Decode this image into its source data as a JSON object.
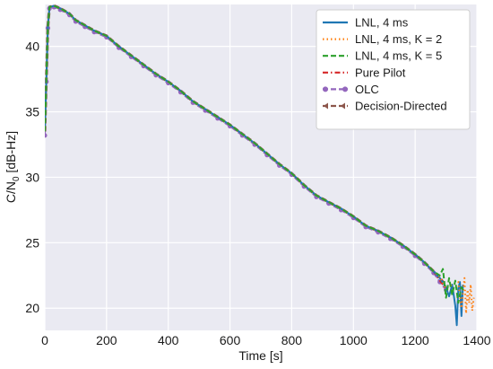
{
  "chart_data": {
    "type": "line",
    "xlabel": "Time [s]",
    "ylabel": "C/N",
    "ylabel_subscript": "0",
    "ylabel_suffix": " [dB-Hz]",
    "xlim": [
      0,
      1400
    ],
    "ylim": [
      18.3,
      43.2
    ],
    "xticks": [
      0,
      200,
      400,
      600,
      800,
      1000,
      1200,
      1400
    ],
    "yticks": [
      20,
      25,
      30,
      35,
      40
    ],
    "grid": true,
    "background": "#eaeaf2",
    "legend_position": "top-right",
    "series": [
      {
        "name": "LNL, 4 ms",
        "color": "#1f77b4",
        "dash": "solid",
        "marker": "none",
        "points": [
          [
            0,
            33.5
          ],
          [
            5,
            37.5
          ],
          [
            10,
            41.5
          ],
          [
            15,
            43.0
          ],
          [
            30,
            43.1
          ],
          [
            50,
            42.9
          ],
          [
            80,
            42.5
          ],
          [
            100,
            42.0
          ],
          [
            130,
            41.6
          ],
          [
            160,
            41.2
          ],
          [
            200,
            40.8
          ],
          [
            240,
            40.0
          ],
          [
            280,
            39.3
          ],
          [
            320,
            38.6
          ],
          [
            360,
            37.9
          ],
          [
            400,
            37.3
          ],
          [
            440,
            36.6
          ],
          [
            480,
            35.8
          ],
          [
            520,
            35.2
          ],
          [
            560,
            34.6
          ],
          [
            600,
            34.0
          ],
          [
            640,
            33.3
          ],
          [
            680,
            32.6
          ],
          [
            720,
            31.8
          ],
          [
            760,
            31.0
          ],
          [
            800,
            30.3
          ],
          [
            840,
            29.4
          ],
          [
            880,
            28.6
          ],
          [
            920,
            28.1
          ],
          [
            960,
            27.6
          ],
          [
            1000,
            27.0
          ],
          [
            1040,
            26.3
          ],
          [
            1080,
            25.9
          ],
          [
            1120,
            25.4
          ],
          [
            1160,
            24.8
          ],
          [
            1200,
            24.1
          ],
          [
            1230,
            23.5
          ],
          [
            1260,
            22.8
          ],
          [
            1280,
            22.3
          ],
          [
            1300,
            21.6
          ],
          [
            1310,
            20.9
          ],
          [
            1320,
            21.8
          ],
          [
            1330,
            20.2
          ],
          [
            1335,
            18.7
          ],
          [
            1340,
            21.5
          ],
          [
            1345,
            22.0
          ],
          [
            1350,
            19.4
          ],
          [
            1355,
            21.8
          ]
        ]
      },
      {
        "name": "LNL, 4 ms, K = 2",
        "color": "#ff7f0e",
        "dash": "dotted",
        "marker": "none",
        "points": [
          [
            0,
            33.5
          ],
          [
            5,
            37.5
          ],
          [
            10,
            41.5
          ],
          [
            15,
            43.0
          ],
          [
            30,
            43.1
          ],
          [
            50,
            42.9
          ],
          [
            80,
            42.5
          ],
          [
            100,
            42.0
          ],
          [
            130,
            41.6
          ],
          [
            160,
            41.2
          ],
          [
            200,
            40.8
          ],
          [
            240,
            40.0
          ],
          [
            280,
            39.3
          ],
          [
            320,
            38.6
          ],
          [
            360,
            37.9
          ],
          [
            400,
            37.3
          ],
          [
            440,
            36.6
          ],
          [
            480,
            35.8
          ],
          [
            520,
            35.2
          ],
          [
            560,
            34.6
          ],
          [
            600,
            34.0
          ],
          [
            640,
            33.3
          ],
          [
            680,
            32.6
          ],
          [
            720,
            31.8
          ],
          [
            760,
            31.0
          ],
          [
            800,
            30.3
          ],
          [
            840,
            29.4
          ],
          [
            880,
            28.6
          ],
          [
            920,
            28.1
          ],
          [
            960,
            27.6
          ],
          [
            1000,
            27.0
          ],
          [
            1040,
            26.3
          ],
          [
            1080,
            25.9
          ],
          [
            1120,
            25.4
          ],
          [
            1160,
            24.8
          ],
          [
            1200,
            24.1
          ],
          [
            1230,
            23.5
          ],
          [
            1260,
            22.8
          ],
          [
            1280,
            22.4
          ],
          [
            1300,
            21.5
          ],
          [
            1320,
            21.8
          ],
          [
            1340,
            22.0
          ],
          [
            1350,
            20.0
          ],
          [
            1360,
            22.3
          ],
          [
            1365,
            19.6
          ],
          [
            1370,
            21.4
          ],
          [
            1375,
            20.4
          ],
          [
            1380,
            21.8
          ],
          [
            1385,
            19.8
          ],
          [
            1390,
            20.8
          ]
        ]
      },
      {
        "name": "LNL, 4 ms, K = 5",
        "color": "#2ca02c",
        "dash": "dashed",
        "marker": "none",
        "points": [
          [
            0,
            33.5
          ],
          [
            5,
            37.5
          ],
          [
            10,
            41.5
          ],
          [
            15,
            43.0
          ],
          [
            30,
            43.1
          ],
          [
            50,
            42.9
          ],
          [
            80,
            42.5
          ],
          [
            100,
            42.0
          ],
          [
            130,
            41.6
          ],
          [
            160,
            41.2
          ],
          [
            200,
            40.8
          ],
          [
            240,
            40.0
          ],
          [
            280,
            39.3
          ],
          [
            320,
            38.6
          ],
          [
            360,
            37.9
          ],
          [
            400,
            37.3
          ],
          [
            440,
            36.6
          ],
          [
            480,
            35.8
          ],
          [
            520,
            35.2
          ],
          [
            560,
            34.6
          ],
          [
            600,
            34.0
          ],
          [
            640,
            33.3
          ],
          [
            680,
            32.6
          ],
          [
            720,
            31.8
          ],
          [
            760,
            31.0
          ],
          [
            800,
            30.3
          ],
          [
            840,
            29.4
          ],
          [
            880,
            28.6
          ],
          [
            920,
            28.1
          ],
          [
            960,
            27.6
          ],
          [
            1000,
            27.0
          ],
          [
            1040,
            26.3
          ],
          [
            1080,
            25.9
          ],
          [
            1120,
            25.4
          ],
          [
            1160,
            24.8
          ],
          [
            1200,
            24.1
          ],
          [
            1230,
            23.5
          ],
          [
            1260,
            22.8
          ],
          [
            1280,
            22.5
          ],
          [
            1290,
            23.0
          ],
          [
            1300,
            20.8
          ],
          [
            1310,
            22.3
          ],
          [
            1320,
            21.0
          ],
          [
            1330,
            22.1
          ],
          [
            1340,
            20.4
          ],
          [
            1350,
            21.6
          ],
          [
            1360,
            21.2
          ]
        ]
      },
      {
        "name": "Pure Pilot",
        "color": "#d62728",
        "dash": "dashdot",
        "marker": "none",
        "points": [
          [
            0,
            33.5
          ],
          [
            5,
            37.5
          ],
          [
            10,
            41.5
          ],
          [
            15,
            43.0
          ],
          [
            30,
            43.1
          ],
          [
            50,
            42.9
          ],
          [
            80,
            42.5
          ],
          [
            100,
            42.0
          ],
          [
            130,
            41.6
          ],
          [
            160,
            41.2
          ],
          [
            200,
            40.8
          ],
          [
            240,
            40.0
          ],
          [
            280,
            39.3
          ],
          [
            320,
            38.6
          ],
          [
            360,
            37.9
          ],
          [
            400,
            37.3
          ],
          [
            440,
            36.6
          ],
          [
            480,
            35.8
          ],
          [
            520,
            35.2
          ],
          [
            560,
            34.6
          ],
          [
            600,
            34.0
          ],
          [
            640,
            33.3
          ],
          [
            680,
            32.6
          ],
          [
            720,
            31.8
          ],
          [
            760,
            31.0
          ],
          [
            800,
            30.3
          ],
          [
            840,
            29.4
          ],
          [
            880,
            28.6
          ],
          [
            920,
            28.1
          ],
          [
            960,
            27.6
          ],
          [
            1000,
            27.0
          ],
          [
            1040,
            26.3
          ],
          [
            1080,
            25.9
          ],
          [
            1120,
            25.4
          ],
          [
            1160,
            24.8
          ],
          [
            1200,
            24.1
          ],
          [
            1230,
            23.5
          ],
          [
            1260,
            22.8
          ],
          [
            1280,
            22.1
          ],
          [
            1300,
            21.5
          ]
        ]
      },
      {
        "name": "OLC",
        "color": "#9467bd",
        "dash": "dashed",
        "marker": "circle",
        "points": [
          [
            0,
            33.2
          ],
          [
            5,
            37.3
          ],
          [
            10,
            41.4
          ],
          [
            15,
            42.9
          ],
          [
            30,
            43.0
          ],
          [
            50,
            42.8
          ],
          [
            80,
            42.4
          ],
          [
            100,
            41.9
          ],
          [
            130,
            41.5
          ],
          [
            160,
            41.1
          ],
          [
            200,
            40.7
          ],
          [
            240,
            39.9
          ],
          [
            280,
            39.2
          ],
          [
            320,
            38.5
          ],
          [
            360,
            37.8
          ],
          [
            400,
            37.2
          ],
          [
            440,
            36.5
          ],
          [
            480,
            35.7
          ],
          [
            520,
            35.1
          ],
          [
            560,
            34.5
          ],
          [
            600,
            33.9
          ],
          [
            640,
            33.2
          ],
          [
            680,
            32.5
          ],
          [
            720,
            31.7
          ],
          [
            760,
            30.9
          ],
          [
            800,
            30.2
          ],
          [
            840,
            29.3
          ],
          [
            880,
            28.5
          ],
          [
            920,
            28.0
          ],
          [
            960,
            27.5
          ],
          [
            1000,
            26.9
          ],
          [
            1040,
            26.2
          ],
          [
            1080,
            25.8
          ],
          [
            1120,
            25.3
          ],
          [
            1160,
            24.7
          ],
          [
            1200,
            24.0
          ],
          [
            1230,
            23.4
          ],
          [
            1260,
            22.7
          ],
          [
            1280,
            22.0
          ],
          [
            1300,
            21.4
          ]
        ]
      },
      {
        "name": "Decision-Directed",
        "color": "#8c564b",
        "dash": "dashed",
        "marker": "arrow",
        "points": [
          [
            0,
            33.5
          ],
          [
            5,
            37.5
          ],
          [
            10,
            41.5
          ],
          [
            15,
            43.0
          ],
          [
            30,
            43.1
          ],
          [
            50,
            42.9
          ],
          [
            80,
            42.5
          ],
          [
            100,
            42.0
          ],
          [
            130,
            41.6
          ],
          [
            160,
            41.2
          ],
          [
            200,
            40.8
          ],
          [
            240,
            40.0
          ],
          [
            280,
            39.3
          ],
          [
            320,
            38.6
          ],
          [
            360,
            37.9
          ],
          [
            400,
            37.3
          ],
          [
            440,
            36.6
          ],
          [
            480,
            35.8
          ],
          [
            520,
            35.2
          ],
          [
            560,
            34.6
          ],
          [
            600,
            34.0
          ],
          [
            640,
            33.3
          ],
          [
            680,
            32.6
          ],
          [
            720,
            31.8
          ],
          [
            760,
            31.0
          ],
          [
            800,
            30.3
          ],
          [
            840,
            29.4
          ],
          [
            880,
            28.6
          ],
          [
            920,
            28.1
          ],
          [
            960,
            27.6
          ],
          [
            1000,
            27.0
          ],
          [
            1040,
            26.3
          ],
          [
            1080,
            25.9
          ],
          [
            1120,
            25.4
          ],
          [
            1160,
            24.8
          ],
          [
            1200,
            24.1
          ],
          [
            1230,
            23.5
          ],
          [
            1260,
            22.8
          ],
          [
            1280,
            22.3
          ],
          [
            1300,
            21.7
          ]
        ]
      }
    ]
  }
}
